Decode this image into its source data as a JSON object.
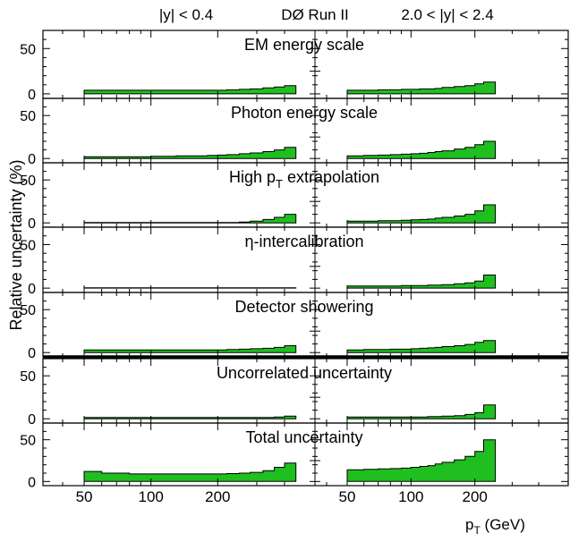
{
  "header": {
    "left_label": "|y| < 0.4",
    "center_label": "DØ Run II",
    "right_label": "2.0 < |y| < 2.4"
  },
  "ylabel": "Relative uncertainty (%)",
  "xlabel": {
    "main": "p",
    "sub": "T",
    "unit": " (GeV)"
  },
  "xticks_left": [
    "50",
    "100",
    "200"
  ],
  "xticks_right": [
    "50",
    "100",
    "200"
  ],
  "yticks": [
    "0",
    "50"
  ],
  "colors": {
    "fill": "#1fbf1f",
    "stroke": "#000000"
  },
  "chart_data": {
    "type": "area",
    "xscale": "log",
    "xlim": [
      40,
      500
    ],
    "ylim": [
      -5,
      70
    ],
    "bins_left": [
      50,
      60,
      70,
      80,
      90,
      100,
      110,
      120,
      130,
      140,
      160,
      180,
      200,
      220,
      250,
      280,
      320,
      360,
      400,
      450
    ],
    "bins_right": [
      50,
      60,
      70,
      80,
      90,
      100,
      110,
      120,
      130,
      140,
      160,
      180,
      200,
      220,
      250
    ],
    "panels": [
      {
        "title": {
          "text": "EM energy scale"
        },
        "left": [
          4,
          4,
          4,
          4,
          4,
          4,
          4,
          4,
          4,
          4,
          4,
          4,
          4,
          4.5,
          5,
          5.5,
          6.5,
          7.5,
          9
        ],
        "right": [
          4,
          4,
          4.5,
          4.5,
          5,
          5,
          5.5,
          5.5,
          6,
          7,
          8,
          9,
          11,
          13
        ]
      },
      {
        "title": {
          "text": "Photon energy scale"
        },
        "left": [
          2,
          2,
          2,
          2,
          2,
          2.5,
          2.5,
          2.5,
          3,
          3,
          3,
          3.5,
          4,
          4.5,
          5.5,
          6.5,
          8,
          10,
          13
        ],
        "right": [
          3,
          3.5,
          4,
          4.5,
          5,
          5.5,
          6,
          7,
          8,
          9,
          11,
          13,
          16,
          20
        ]
      },
      {
        "title": {
          "text": "High p",
          "sub": "T",
          "tail": " extrapolation"
        },
        "left": [
          0.5,
          0.5,
          0.5,
          0.5,
          0.5,
          0.5,
          0.5,
          0.5,
          0.5,
          0.5,
          0.5,
          0.5,
          0.5,
          0.5,
          1,
          2,
          4,
          6.5,
          10
        ],
        "right": [
          2,
          2,
          2.5,
          2.5,
          3,
          3.5,
          4,
          4.5,
          5.5,
          6.5,
          8,
          10,
          14,
          21
        ]
      },
      {
        "title": {
          "text": "η-intercalibration"
        },
        "left": [
          0.3,
          0.3,
          0.3,
          0.3,
          0.3,
          0.3,
          0.3,
          0.3,
          0.3,
          0.3,
          0.3,
          0.3,
          0.3,
          0.3,
          0.3,
          0.3,
          0.3,
          0.3,
          0.3
        ],
        "right": [
          2.5,
          2.5,
          2.5,
          2.5,
          3,
          3,
          3,
          3.5,
          3.5,
          4,
          5,
          6,
          8,
          15
        ]
      },
      {
        "title": {
          "text": "Detector showering"
        },
        "left": [
          3,
          3,
          3,
          3,
          3,
          3,
          3,
          3,
          3,
          3,
          3,
          3,
          3,
          3.5,
          4,
          4.5,
          5,
          6,
          8
        ],
        "right": [
          3,
          3.5,
          3.5,
          4,
          4,
          4.5,
          5,
          5.5,
          6,
          7,
          8,
          9.5,
          12,
          14
        ]
      },
      {
        "title": {
          "text": "Uncorrelated uncertainty"
        },
        "left": [
          1.5,
          1.5,
          1.5,
          1.5,
          1.5,
          1.5,
          1.5,
          1.5,
          1.5,
          1.5,
          1.5,
          1.5,
          1.5,
          1.5,
          1.5,
          1.5,
          1.5,
          2,
          3
        ],
        "right": [
          2,
          2,
          2,
          2,
          2,
          2,
          2,
          2.5,
          2.5,
          3,
          3.5,
          5,
          7,
          16
        ]
      },
      {
        "title": {
          "text": "Total uncertainty"
        },
        "left": [
          12,
          10,
          10,
          9,
          9,
          9,
          9,
          9,
          9,
          9,
          9,
          9,
          9,
          9.5,
          10,
          11,
          13,
          17,
          22
        ],
        "right": [
          14,
          14.5,
          15,
          15.5,
          16,
          17,
          18,
          19,
          21,
          23,
          26,
          30,
          36,
          50
        ]
      }
    ]
  }
}
